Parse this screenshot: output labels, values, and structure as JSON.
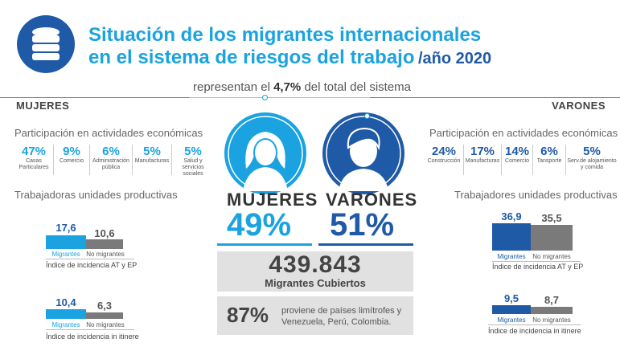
{
  "header": {
    "title_line1": "Situación de los migrantes internacionales",
    "title_line2": "en el sistema de riesgos del trabajo",
    "year": "/año 2020",
    "subtitle_pre": "representan el ",
    "subtitle_bold": "4,7%",
    "subtitle_post": " del total del sistema",
    "icon": "database-icon"
  },
  "colors": {
    "light_blue": "#1aa3e0",
    "dark_blue": "#1f5aa6",
    "grey": "#7a7a7a"
  },
  "women": {
    "section_title": "MUJERES",
    "activities_title": "Participación en actividades económicas",
    "activities": [
      {
        "pct": "47%",
        "label": "Casas Particulares"
      },
      {
        "pct": "9%",
        "label": "Comercio"
      },
      {
        "pct": "6%",
        "label": "Administración pública"
      },
      {
        "pct": "5%",
        "label": "Manufacturas"
      },
      {
        "pct": "5%",
        "label": "Salud y servicios sociales"
      }
    ],
    "units_title": "Trabajadoras unidades productivas",
    "at_ep": {
      "migrantes": "17,6",
      "no_migrantes": "10,6",
      "migrantes_label": "Migrantes",
      "no_migrantes_label": "No migrantes",
      "index_label": "Índice de incidencia AT y EP"
    },
    "itinere": {
      "migrantes": "10,4",
      "no_migrantes": "6,3",
      "migrantes_label": "Migrantes",
      "no_migrantes_label": "No migrantes",
      "index_label": "Índice de incidencia in itinere"
    },
    "big_label": "MUJERES",
    "big_pct": "49%",
    "avatar_icon": "woman-icon"
  },
  "men": {
    "section_title": "VARONES",
    "activities_title": "Participación en actividades económicas",
    "activities": [
      {
        "pct": "24%",
        "label": "Construcción"
      },
      {
        "pct": "17%",
        "label": "Manufacturas"
      },
      {
        "pct": "14%",
        "label": "Comercio"
      },
      {
        "pct": "6%",
        "label": "Tansporte"
      },
      {
        "pct": "5%",
        "label": "Serv.de alojamiento y comida"
      }
    ],
    "units_title": "Trabajadores unidades productivas",
    "at_ep": {
      "migrantes": "36,9",
      "no_migrantes": "35,5",
      "migrantes_label": "Migrantes",
      "no_migrantes_label": "No migrantes",
      "index_label": "Índice de incidencia AT y EP"
    },
    "itinere": {
      "migrantes": "9,5",
      "no_migrantes": "8,7",
      "migrantes_label": "Migrantes",
      "no_migrantes_label": "No migrantes",
      "index_label": "Índice de incidencia in itinere"
    },
    "big_label": "VARONES",
    "big_pct": "51%",
    "avatar_icon": "man-icon"
  },
  "totals": {
    "covered_number": "439.843",
    "covered_label": "Migrantes Cubiertos",
    "origin_pct": "87%",
    "origin_text_1": "proviene de países limítrofes y",
    "origin_text_2": "Venezuela, Perú, Colombia."
  }
}
